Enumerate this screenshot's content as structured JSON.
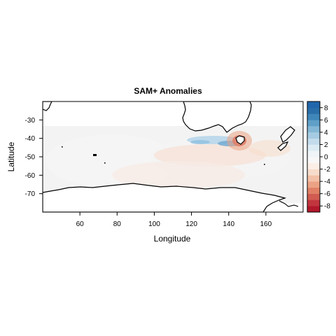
{
  "chart_data": {
    "type": "heatmap",
    "title": "SAM+  Anomalies",
    "xlabel": "Longitude",
    "ylabel": "Latitude",
    "xlim": [
      40,
      180
    ],
    "ylim": [
      -80,
      -20
    ],
    "x_ticks": [
      60,
      80,
      100,
      120,
      140,
      160
    ],
    "y_ticks": [
      -30,
      -40,
      -50,
      -60,
      -70
    ],
    "grid": false,
    "colorbar": {
      "placement": "right",
      "range": [
        -9,
        9
      ],
      "ticks": [
        8,
        6,
        4,
        2,
        0,
        -2,
        -4,
        -6,
        -8
      ],
      "colors": [
        "#b2182b",
        "#c1363e",
        "#d15b51",
        "#e07f65",
        "#eba284",
        "#f2c0a6",
        "#f7dccb",
        "#fbeee6",
        "#f7f7f7",
        "#eef4f8",
        "#dcebf3",
        "#c3dcec",
        "#a5cbe2",
        "#84b7d6",
        "#5f9fc8",
        "#3f86b9",
        "#2a6ea9",
        "#2166ac"
      ]
    },
    "features": [
      "near-zero anomalies across the Southern Ocean between Australia and Antarctica",
      "weak positive anomaly band near 120-140E around 40S",
      "strongest negative anomaly near Tasmania around 145E, 42S"
    ]
  }
}
